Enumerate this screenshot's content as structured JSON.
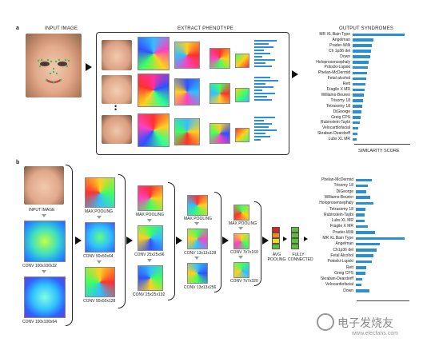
{
  "panel_a": {
    "label": "a",
    "input_title": "INPUT IMAGE",
    "extract_title": "EXTRACT PHENOTYPE",
    "output_title": "OUTPUT SYNDROMES",
    "score_label": "SIMILARITY SCORE",
    "syndromes": [
      {
        "name": "MR XL Bain Type",
        "score": 0.95
      },
      {
        "name": "Angelman",
        "score": 0.38
      },
      {
        "name": "Prader-Willi",
        "score": 0.36
      },
      {
        "name": "Ch 1p36 del",
        "score": 0.34
      },
      {
        "name": "Down",
        "score": 0.32
      },
      {
        "name": "Holoprosencephaly",
        "score": 0.3
      },
      {
        "name": "Potocki-Lupski",
        "score": 0.28
      },
      {
        "name": "Phelan-McDermid",
        "score": 0.26
      },
      {
        "name": "Fetal alcohol",
        "score": 0.25
      },
      {
        "name": "Rett",
        "score": 0.23
      },
      {
        "name": "Fragile X MR",
        "score": 0.22
      },
      {
        "name": "Williams-Beuren",
        "score": 0.2
      },
      {
        "name": "Trisomy 18",
        "score": 0.19
      },
      {
        "name": "Tetrasomy 18",
        "score": 0.18
      },
      {
        "name": "DiGeorge",
        "score": 0.16
      },
      {
        "name": "Greig CPS",
        "score": 0.15
      },
      {
        "name": "Rubinstein-Taybi",
        "score": 0.13
      },
      {
        "name": "Velocardiofacial",
        "score": 0.11
      },
      {
        "name": "Skraban-Deardorff",
        "score": 0.09
      },
      {
        "name": "Lubs XL MR",
        "score": 0.07
      }
    ]
  },
  "panel_b": {
    "label": "b",
    "input_label": "INPUT IMAGE",
    "conv1a": "CONV 100x100x32",
    "conv1b": "CONV 100x100x64",
    "pool1": "MAX POOLING",
    "conv2a": "CONV 50x50x64",
    "conv2b": "CONV 50x50x128",
    "pool2": "MAX POOLING",
    "conv3a": "CONV 25x25x96",
    "conv3b": "CONV 25x25x192",
    "pool3": "MAX POOLING",
    "conv4a": "CONV 13x13x128",
    "conv4b": "CONV 13x13x256",
    "pool4": "MAX POOLING",
    "conv5a": "CONV 7x7x160",
    "conv5b": "CONV 7x7x320",
    "avg_pool": "AVG POOLING",
    "fully_connected": "FULLY CONNECTED",
    "syndromes": [
      {
        "name": "Phelan-McDermid",
        "score": 0.3
      },
      {
        "name": "Trisomy 18",
        "score": 0.22
      },
      {
        "name": "DiGeorge",
        "score": 0.2
      },
      {
        "name": "Williams-Beuren",
        "score": 0.28
      },
      {
        "name": "Holoprosencephaly",
        "score": 0.33
      },
      {
        "name": "Tetrasomy 18",
        "score": 0.18
      },
      {
        "name": "Rubinstein-Taybi",
        "score": 0.17
      },
      {
        "name": "Lubs XL MR",
        "score": 0.16
      },
      {
        "name": "Fragile X MR",
        "score": 0.22
      },
      {
        "name": "Prader-Willi",
        "score": 0.36
      },
      {
        "name": "MR XL Bain Type",
        "score": 0.92
      },
      {
        "name": "Angelman",
        "score": 0.45
      },
      {
        "name": "Ch1p36 del",
        "score": 0.4
      },
      {
        "name": "Fetal Alcohol",
        "score": 0.34
      },
      {
        "name": "Potocki-Lupski",
        "score": 0.3
      },
      {
        "name": "Rett",
        "score": 0.2
      },
      {
        "name": "Greig CPS",
        "score": 0.18
      },
      {
        "name": "Skraban-Deardorff",
        "score": 0.12
      },
      {
        "name": "Velocardiofacial",
        "score": 0.1
      },
      {
        "name": "Down",
        "score": 0.26
      }
    ]
  },
  "watermark": {
    "text": "电子发烧友",
    "url": "www.elecfans.com"
  },
  "colors": {
    "bar": "#2b8fd6",
    "fc_red": "#e32020",
    "fc_orange": "#f08a1c",
    "fc_yellow": "#f0d81c",
    "fc_green": "#5cbf3a"
  }
}
